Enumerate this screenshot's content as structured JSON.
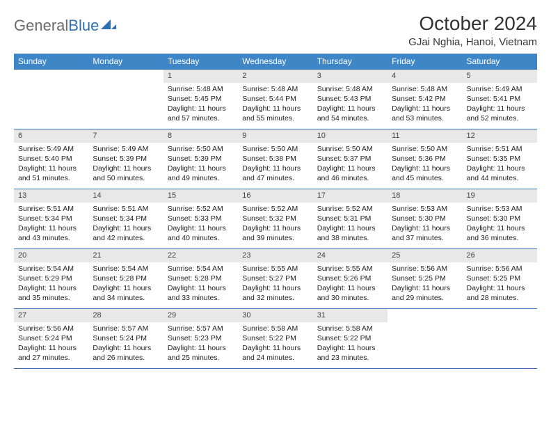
{
  "brand": {
    "part1": "General",
    "part2": "Blue"
  },
  "title": "October 2024",
  "location": "GJai Nghia, Hanoi, Vietnam",
  "colors": {
    "header_bg": "#3f86c7",
    "header_text": "#ffffff",
    "border": "#2f6fb4",
    "daynum_bg": "#e8e8e8",
    "body_text": "#222222",
    "brand_gray": "#6b6b6b",
    "brand_blue": "#2f6fb4",
    "page_bg": "#ffffff"
  },
  "layout": {
    "columns": 7,
    "rows": 5,
    "col_width_pct": 14.28,
    "header_fontsize": 12,
    "cell_fontsize": 10.5,
    "title_fontsize": 28,
    "location_fontsize": 15
  },
  "day_headers": [
    "Sunday",
    "Monday",
    "Tuesday",
    "Wednesday",
    "Thursday",
    "Friday",
    "Saturday"
  ],
  "weeks": [
    [
      null,
      null,
      {
        "n": "1",
        "sr": "5:48 AM",
        "ss": "5:45 PM",
        "d": "11 hours and 57 minutes."
      },
      {
        "n": "2",
        "sr": "5:48 AM",
        "ss": "5:44 PM",
        "d": "11 hours and 55 minutes."
      },
      {
        "n": "3",
        "sr": "5:48 AM",
        "ss": "5:43 PM",
        "d": "11 hours and 54 minutes."
      },
      {
        "n": "4",
        "sr": "5:48 AM",
        "ss": "5:42 PM",
        "d": "11 hours and 53 minutes."
      },
      {
        "n": "5",
        "sr": "5:49 AM",
        "ss": "5:41 PM",
        "d": "11 hours and 52 minutes."
      }
    ],
    [
      {
        "n": "6",
        "sr": "5:49 AM",
        "ss": "5:40 PM",
        "d": "11 hours and 51 minutes."
      },
      {
        "n": "7",
        "sr": "5:49 AM",
        "ss": "5:39 PM",
        "d": "11 hours and 50 minutes."
      },
      {
        "n": "8",
        "sr": "5:50 AM",
        "ss": "5:39 PM",
        "d": "11 hours and 49 minutes."
      },
      {
        "n": "9",
        "sr": "5:50 AM",
        "ss": "5:38 PM",
        "d": "11 hours and 47 minutes."
      },
      {
        "n": "10",
        "sr": "5:50 AM",
        "ss": "5:37 PM",
        "d": "11 hours and 46 minutes."
      },
      {
        "n": "11",
        "sr": "5:50 AM",
        "ss": "5:36 PM",
        "d": "11 hours and 45 minutes."
      },
      {
        "n": "12",
        "sr": "5:51 AM",
        "ss": "5:35 PM",
        "d": "11 hours and 44 minutes."
      }
    ],
    [
      {
        "n": "13",
        "sr": "5:51 AM",
        "ss": "5:34 PM",
        "d": "11 hours and 43 minutes."
      },
      {
        "n": "14",
        "sr": "5:51 AM",
        "ss": "5:34 PM",
        "d": "11 hours and 42 minutes."
      },
      {
        "n": "15",
        "sr": "5:52 AM",
        "ss": "5:33 PM",
        "d": "11 hours and 40 minutes."
      },
      {
        "n": "16",
        "sr": "5:52 AM",
        "ss": "5:32 PM",
        "d": "11 hours and 39 minutes."
      },
      {
        "n": "17",
        "sr": "5:52 AM",
        "ss": "5:31 PM",
        "d": "11 hours and 38 minutes."
      },
      {
        "n": "18",
        "sr": "5:53 AM",
        "ss": "5:30 PM",
        "d": "11 hours and 37 minutes."
      },
      {
        "n": "19",
        "sr": "5:53 AM",
        "ss": "5:30 PM",
        "d": "11 hours and 36 minutes."
      }
    ],
    [
      {
        "n": "20",
        "sr": "5:54 AM",
        "ss": "5:29 PM",
        "d": "11 hours and 35 minutes."
      },
      {
        "n": "21",
        "sr": "5:54 AM",
        "ss": "5:28 PM",
        "d": "11 hours and 34 minutes."
      },
      {
        "n": "22",
        "sr": "5:54 AM",
        "ss": "5:28 PM",
        "d": "11 hours and 33 minutes."
      },
      {
        "n": "23",
        "sr": "5:55 AM",
        "ss": "5:27 PM",
        "d": "11 hours and 32 minutes."
      },
      {
        "n": "24",
        "sr": "5:55 AM",
        "ss": "5:26 PM",
        "d": "11 hours and 30 minutes."
      },
      {
        "n": "25",
        "sr": "5:56 AM",
        "ss": "5:25 PM",
        "d": "11 hours and 29 minutes."
      },
      {
        "n": "26",
        "sr": "5:56 AM",
        "ss": "5:25 PM",
        "d": "11 hours and 28 minutes."
      }
    ],
    [
      {
        "n": "27",
        "sr": "5:56 AM",
        "ss": "5:24 PM",
        "d": "11 hours and 27 minutes."
      },
      {
        "n": "28",
        "sr": "5:57 AM",
        "ss": "5:24 PM",
        "d": "11 hours and 26 minutes."
      },
      {
        "n": "29",
        "sr": "5:57 AM",
        "ss": "5:23 PM",
        "d": "11 hours and 25 minutes."
      },
      {
        "n": "30",
        "sr": "5:58 AM",
        "ss": "5:22 PM",
        "d": "11 hours and 24 minutes."
      },
      {
        "n": "31",
        "sr": "5:58 AM",
        "ss": "5:22 PM",
        "d": "11 hours and 23 minutes."
      },
      null,
      null
    ]
  ],
  "labels": {
    "sunrise": "Sunrise:",
    "sunset": "Sunset:",
    "daylight": "Daylight:"
  }
}
